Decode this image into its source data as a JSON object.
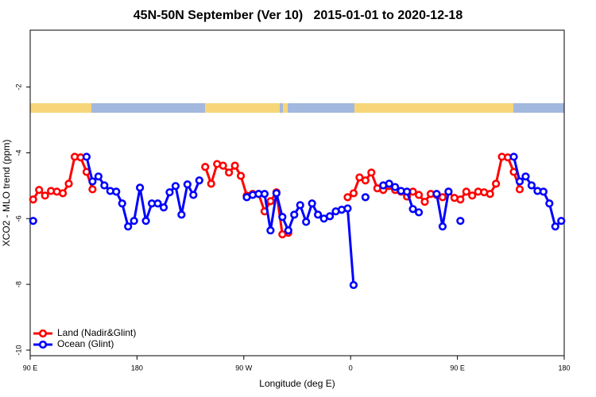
{
  "chart_data": {
    "type": "line",
    "title": "45N-50N September (Ver 10)   2015-01-01 to 2020-12-18",
    "x_label": "Longitude (deg E)",
    "y_label": "XCO2 - MLO trend (ppm)",
    "x": [
      92.5,
      97.5,
      102.5,
      107.5,
      112.5,
      117.5,
      122.5,
      127.5,
      132.5,
      137.5,
      142.5,
      147.5,
      152.5,
      157.5,
      162.5,
      167.5,
      172.5,
      177.5,
      182.5,
      187.5,
      192.5,
      197.5,
      202.5,
      207.5,
      212.5,
      217.5,
      222.5,
      227.5,
      232.5,
      237.5,
      242.5,
      247.5,
      252.5,
      257.5,
      262.5,
      267.5,
      272.5,
      277.5,
      282.5,
      287.5,
      292.5,
      297.5,
      302.5,
      307.5,
      312.5,
      317.5,
      322.5,
      327.5,
      332.5,
      337.5,
      342.5,
      347.5,
      352.5,
      357.5,
      362.5,
      367.5,
      372.5,
      377.5,
      382.5,
      387.5,
      392.5,
      397.5,
      402.5,
      407.5,
      412.5,
      417.5,
      422.5,
      427.5,
      432.5,
      437.5,
      442.5,
      447.5,
      452.5,
      457.5,
      462.5,
      467.5,
      472.5,
      477.5,
      482.5,
      487.5,
      492.5,
      497.5,
      502.5,
      507.5,
      512.5,
      517.5,
      522.5,
      527.5,
      532.5,
      537.5
    ],
    "series": [
      {
        "name": "Land (Nadir&Glint)",
        "color": "#ff0000",
        "values": [
          -5.42,
          -5.13,
          -5.3,
          -5.16,
          -5.18,
          -5.23,
          -4.94,
          -4.12,
          -4.14,
          -4.58,
          -5.11,
          null,
          null,
          null,
          null,
          null,
          null,
          null,
          null,
          null,
          null,
          null,
          null,
          null,
          null,
          null,
          null,
          null,
          null,
          -4.43,
          -4.94,
          -4.34,
          -4.39,
          -4.6,
          -4.39,
          -4.7,
          -5.3,
          -5.25,
          -5.25,
          -5.78,
          -5.47,
          -5.2,
          -6.48,
          -6.43,
          null,
          null,
          null,
          null,
          null,
          null,
          null,
          null,
          null,
          -5.35,
          -5.23,
          -4.75,
          -4.84,
          -4.6,
          -5.08,
          -5.13,
          -5.01,
          -5.13,
          -5.18,
          -5.33,
          -5.18,
          -5.28,
          -5.49,
          -5.25,
          -5.28,
          -5.35,
          -5.18,
          -5.37,
          -5.42,
          -5.18,
          -5.3,
          -5.18,
          -5.2,
          -5.25,
          -4.94,
          -4.12,
          -4.14,
          -4.58,
          -5.11,
          null,
          null,
          null,
          null,
          null,
          null,
          null
        ]
      },
      {
        "name": "Ocean (Glint)",
        "color": "#0000ff",
        "values": [
          -6.07,
          null,
          null,
          null,
          null,
          null,
          null,
          null,
          null,
          -4.12,
          -4.87,
          -4.72,
          -4.99,
          -5.16,
          -5.18,
          -5.54,
          -6.24,
          -6.07,
          -5.06,
          -6.07,
          -5.54,
          -5.54,
          -5.66,
          -5.2,
          -5.01,
          -5.88,
          -4.96,
          -5.28,
          -4.84,
          null,
          null,
          null,
          null,
          null,
          null,
          null,
          -5.35,
          -5.28,
          -5.25,
          -5.25,
          -6.36,
          -5.23,
          -5.95,
          -6.36,
          -5.88,
          -5.59,
          -6.1,
          -5.54,
          -5.88,
          -6.0,
          -5.93,
          -5.78,
          -5.73,
          -5.69,
          -8.02,
          null,
          -5.35,
          null,
          null,
          -4.99,
          -4.94,
          -5.04,
          -5.16,
          -5.18,
          -5.71,
          -5.81,
          null,
          null,
          -5.25,
          -6.24,
          -5.18,
          null,
          -6.07,
          null,
          null,
          null,
          null,
          null,
          null,
          null,
          null,
          -4.12,
          -4.87,
          -4.72,
          -4.99,
          -5.16,
          -5.18,
          -5.54,
          -6.24,
          -6.07
        ]
      }
    ],
    "xlim": [
      90,
      540
    ],
    "xticks": [
      {
        "value": 90,
        "label": "90 E"
      },
      180,
      {
        "value": 270,
        "label": "90 W"
      },
      {
        "value": 360,
        "label": "0"
      },
      {
        "value": 450,
        "label": "90 E"
      },
      {
        "value": 540,
        "label": "180"
      }
    ],
    "ylim": [
      -10.17,
      -0.27
    ],
    "yticks": [
      -2,
      -4,
      -6,
      -8,
      -10
    ],
    "legend": "bottom-left"
  }
}
